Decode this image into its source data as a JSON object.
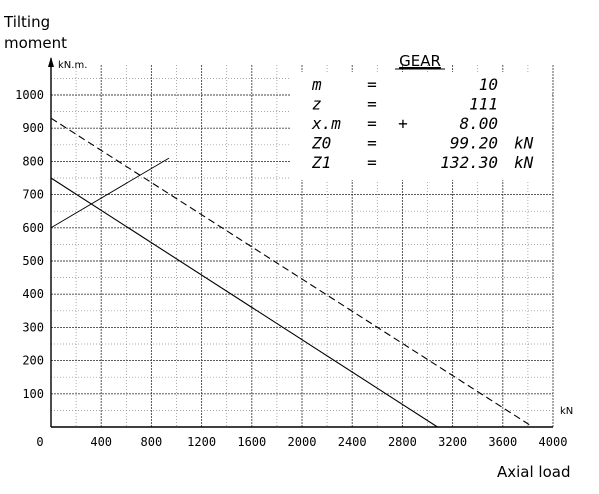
{
  "chart_data": {
    "type": "line",
    "ylabel_lines": [
      "Tilting",
      "moment"
    ],
    "xlabel": "Axial load",
    "y_unit": "kN.m.",
    "x_unit": "kN",
    "origin_label": "0",
    "xlim": [
      0,
      4000
    ],
    "ylim": [
      0,
      1000
    ],
    "x_ticks": [
      "400",
      "800",
      "1200",
      "1600",
      "2000",
      "2400",
      "2800",
      "3200",
      "3600",
      "4000"
    ],
    "y_ticks": [
      "100",
      "200",
      "300",
      "400",
      "500",
      "600",
      "700",
      "800",
      "900",
      "1000"
    ],
    "grid": true,
    "series": [
      {
        "style": "solid",
        "x": [
          0,
          3080
        ],
        "y": [
          750,
          0
        ]
      },
      {
        "style": "dashed",
        "x": [
          0,
          3840
        ],
        "y": [
          930,
          0
        ]
      },
      {
        "style": "solid-thin",
        "x": [
          0,
          940
        ],
        "y": [
          600,
          810
        ]
      }
    ],
    "gear_table": {
      "title": "GEAR",
      "rows": [
        {
          "name": "m",
          "eq": "=",
          "sign": "",
          "value": "10",
          "unit": ""
        },
        {
          "name": "z",
          "eq": "=",
          "sign": "",
          "value": "111",
          "unit": ""
        },
        {
          "name": "x.m",
          "eq": "=",
          "sign": "+",
          "value": "8.00",
          "unit": ""
        },
        {
          "name": "Z0",
          "eq": "=",
          "sign": "",
          "value": "99.20",
          "unit": "kN"
        },
        {
          "name": "Z1",
          "eq": "=",
          "sign": "",
          "value": "132.30",
          "unit": "kN"
        }
      ]
    }
  }
}
